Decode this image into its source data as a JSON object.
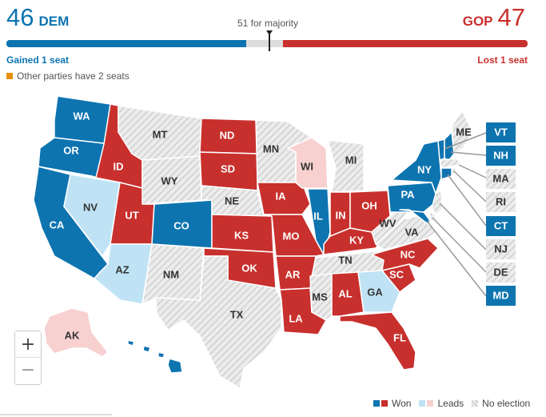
{
  "header": {
    "dem_seats": "46",
    "dem_label": "DEM",
    "gop_seats": "47",
    "gop_label": "GOP",
    "majority_label": "51 for majority",
    "dem_change": "Gained 1 seat",
    "gop_change": "Lost 1 seat",
    "other_parties": "Other parties have 2 seats"
  },
  "colors": {
    "dem_won": "#0d74b0",
    "gop_won": "#c8302d",
    "dem_leads": "#bfe3f5",
    "gop_leads": "#f8d0d0",
    "no_election": "#e4e4e4",
    "other_parties": "#e8900c"
  },
  "states": {
    "WA": {
      "label": "WA",
      "status": "dem_won"
    },
    "OR": {
      "label": "OR",
      "status": "dem_won"
    },
    "CA": {
      "label": "CA",
      "status": "dem_won"
    },
    "NV": {
      "label": "NV",
      "status": "dem_leads"
    },
    "ID": {
      "label": "ID",
      "status": "gop_won"
    },
    "MT": {
      "label": "MT",
      "status": "no_election"
    },
    "WY": {
      "label": "WY",
      "status": "no_election"
    },
    "UT": {
      "label": "UT",
      "status": "gop_won"
    },
    "AZ": {
      "label": "AZ",
      "status": "dem_leads"
    },
    "CO": {
      "label": "CO",
      "status": "dem_won"
    },
    "NM": {
      "label": "NM",
      "status": "no_election"
    },
    "ND": {
      "label": "ND",
      "status": "gop_won"
    },
    "SD": {
      "label": "SD",
      "status": "gop_won"
    },
    "NE": {
      "label": "NE",
      "status": "no_election"
    },
    "KS": {
      "label": "KS",
      "status": "gop_won"
    },
    "OK": {
      "label": "OK",
      "status": "gop_won"
    },
    "TX": {
      "label": "TX",
      "status": "no_election"
    },
    "MN": {
      "label": "MN",
      "status": "no_election"
    },
    "IA": {
      "label": "IA",
      "status": "gop_won"
    },
    "MO": {
      "label": "MO",
      "status": "gop_won"
    },
    "AR": {
      "label": "AR",
      "status": "gop_won"
    },
    "LA": {
      "label": "LA",
      "status": "gop_won"
    },
    "WI": {
      "label": "WI",
      "status": "gop_leads"
    },
    "IL": {
      "label": "IL",
      "status": "dem_won"
    },
    "MI": {
      "label": "MI",
      "status": "no_election"
    },
    "IN": {
      "label": "IN",
      "status": "gop_won"
    },
    "OH": {
      "label": "OH",
      "status": "gop_won"
    },
    "KY": {
      "label": "KY",
      "status": "gop_won"
    },
    "TN": {
      "label": "TN",
      "status": "no_election"
    },
    "MS": {
      "label": "MS",
      "status": "no_election"
    },
    "AL": {
      "label": "AL",
      "status": "gop_won"
    },
    "GA": {
      "label": "GA",
      "status": "dem_leads"
    },
    "FL": {
      "label": "FL",
      "status": "gop_won"
    },
    "SC": {
      "label": "SC",
      "status": "gop_won"
    },
    "NC": {
      "label": "NC",
      "status": "gop_won"
    },
    "VA": {
      "label": "VA",
      "status": "no_election"
    },
    "WV": {
      "label": "WV",
      "status": "no_election"
    },
    "PA": {
      "label": "PA",
      "status": "dem_won"
    },
    "NY": {
      "label": "NY",
      "status": "dem_won"
    },
    "ME": {
      "label": "ME",
      "status": "no_election"
    },
    "VT": {
      "label": "VT",
      "status": "dem_won"
    },
    "NH": {
      "label": "NH",
      "status": "dem_won"
    },
    "MA": {
      "label": "MA",
      "status": "no_election"
    },
    "RI": {
      "label": "RI",
      "status": "no_election"
    },
    "CT": {
      "label": "CT",
      "status": "dem_won"
    },
    "NJ": {
      "label": "NJ",
      "status": "no_election"
    },
    "DE": {
      "label": "DE",
      "status": "no_election"
    },
    "MD": {
      "label": "MD",
      "status": "dem_won"
    },
    "AK": {
      "label": "AK",
      "status": "gop_leads"
    },
    "HI": {
      "label": "HI",
      "status": "dem_won"
    }
  },
  "zoom": {
    "in_label": "+",
    "out_label": "−"
  },
  "legend": {
    "won": "Won",
    "leads": "Leads",
    "no_election": "No election"
  }
}
